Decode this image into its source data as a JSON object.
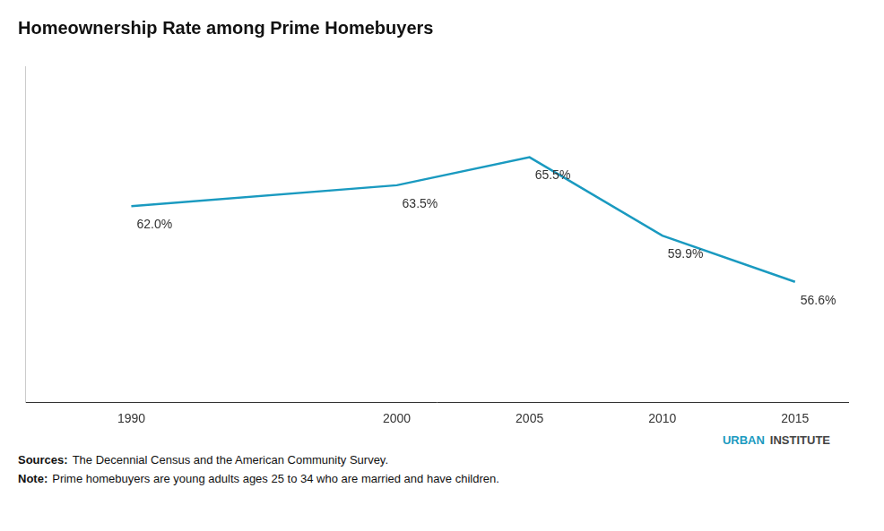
{
  "chart_data": {
    "type": "line",
    "title": "Homeownership Rate among Prime Homebuyers",
    "x": [
      1990,
      2000,
      2005,
      2010,
      2015
    ],
    "values": [
      62.0,
      63.5,
      65.5,
      59.9,
      56.6
    ],
    "value_labels": [
      "62.0%",
      "63.5%",
      "65.5%",
      "59.9%",
      "56.6%"
    ],
    "data_labels": true,
    "color": "#1a9ac0",
    "marker": "none",
    "xlim": [
      1986,
      2017
    ],
    "xticks": [
      1990,
      2000,
      2005,
      2010,
      2015
    ],
    "ylim": [
      48,
      72
    ],
    "tick_labels": "x",
    "grid": false,
    "annotations": [
      "URBAN",
      "INSTITUTE",
      "Sources:",
      "The Decennial Census and the American Community Survey.",
      "Note:",
      "Prime homebuyers are young adults ages 25 to 34 who are married and have children."
    ]
  }
}
